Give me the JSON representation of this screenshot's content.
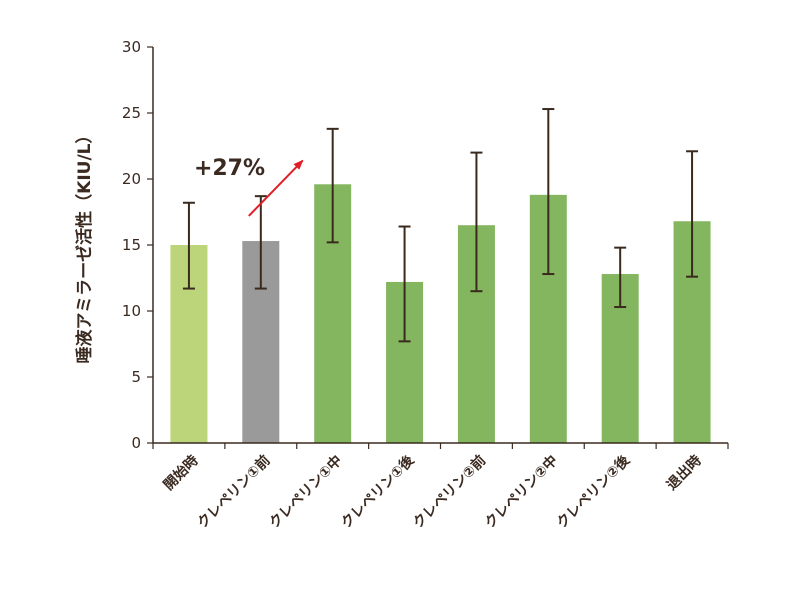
{
  "chart_data": {
    "type": "bar",
    "title": "",
    "xlabel": "",
    "ylabel": "唾液アミラーゼ活性（KIU/L）",
    "ylim": [
      0,
      30
    ],
    "yticks": [
      0,
      5,
      10,
      15,
      20,
      25,
      30
    ],
    "categories": [
      "開始時",
      "クレペリン①前",
      "クレペリン①中",
      "クレペリン①後",
      "クレペリン②前",
      "クレペリン②中",
      "クレペリン②後",
      "退出時"
    ],
    "values": [
      15.0,
      15.3,
      19.6,
      12.2,
      16.5,
      18.8,
      12.8,
      16.8
    ],
    "error_low": [
      11.7,
      11.7,
      15.2,
      7.7,
      11.5,
      12.8,
      10.3,
      12.6
    ],
    "error_high": [
      18.2,
      18.7,
      23.8,
      16.4,
      22.0,
      25.3,
      14.8,
      22.1
    ],
    "bar_colors": [
      "#bcd47a",
      "#9a9a9a",
      "#84b660",
      "#84b660",
      "#84b660",
      "#84b660",
      "#84b660",
      "#84b660"
    ],
    "error_color": "#3a2a1e",
    "axis_color": "#3a2a20",
    "annotation": {
      "text": "+27%",
      "arrow_color": "#e01e28",
      "arrow_from": {
        "category": "クレペリン①前",
        "value": 17.2
      },
      "arrow_to": {
        "category": "クレペリン①中",
        "value": 21.4
      },
      "text_anchor": {
        "category": "開始時",
        "value": 20.3
      }
    }
  }
}
